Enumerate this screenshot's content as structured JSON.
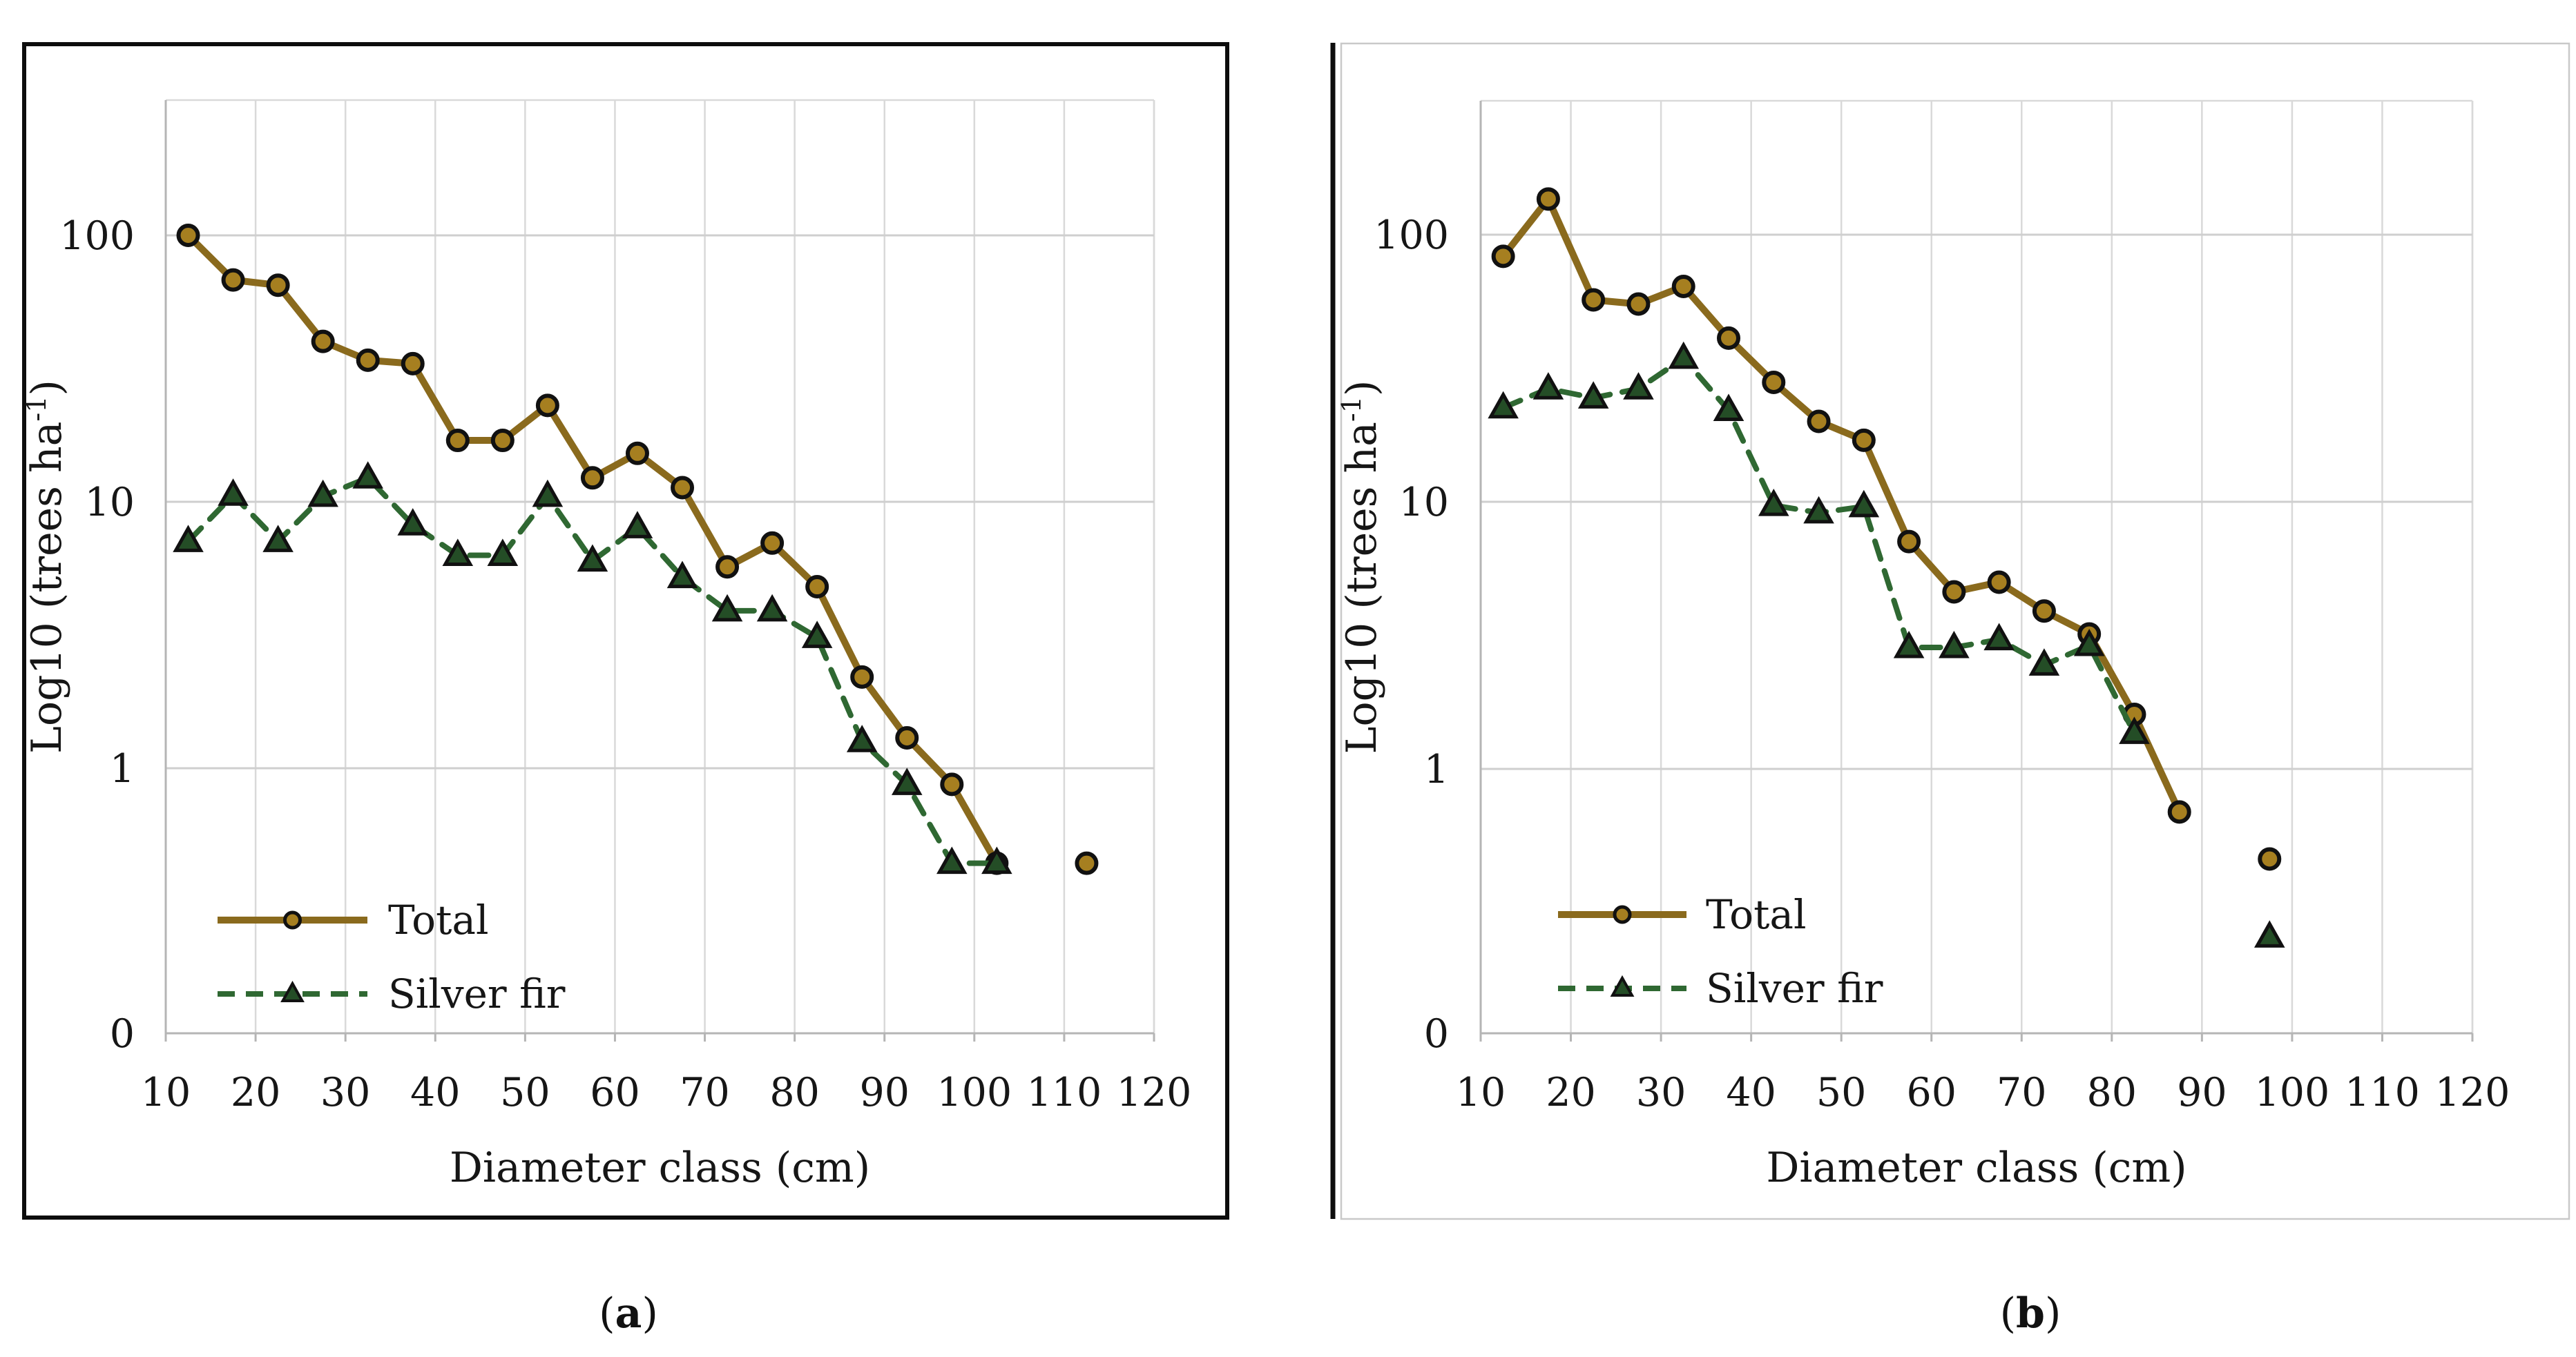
{
  "page": {
    "background": "#ffffff"
  },
  "captions": {
    "a_open": "(",
    "a_letter": "a",
    "a_close": ")",
    "b_open": "(",
    "b_letter": "b",
    "b_close": ")"
  },
  "colors": {
    "total_line": "#8a6a1d",
    "total_marker_fill": "#a67f20",
    "fir_line": "#2f6832",
    "fir_marker_fill": "#244d26",
    "marker_stroke": "#111111",
    "gridline": "#d9d9d9",
    "axis_line": "#b5b5b5",
    "text": "#161616",
    "panel_a_border": "#0d0d0d",
    "panel_b_border": "#c9c9c9"
  },
  "chart_data": [
    {
      "id": "a",
      "type": "line",
      "title": "",
      "xlabel": "Diameter class (cm)",
      "ylabel_prefix": "Log10 (trees ha",
      "ylabel_sup": "-1",
      "ylabel_suffix": ")",
      "y_scale": "log10",
      "xlim": [
        10,
        120
      ],
      "ylim": [
        0.1,
        320
      ],
      "x_ticks": [
        10,
        20,
        30,
        40,
        50,
        60,
        70,
        80,
        90,
        100,
        110,
        120
      ],
      "y_ticks": [
        {
          "v": 100,
          "label": "100"
        },
        {
          "v": 10,
          "label": "10"
        },
        {
          "v": 1,
          "label": "1"
        },
        {
          "v": 0.1,
          "label": "0"
        }
      ],
      "y_gridlines": [
        100,
        10,
        1
      ],
      "grid": true,
      "legend_position": "inside-bottom-left",
      "series": [
        {
          "name": "Total",
          "marker": "circle",
          "dash": "solid",
          "segments": [
            {
              "x": [
                12.5,
                17.5,
                22.5,
                27.5,
                32.5,
                37.5,
                42.5,
                47.5,
                52.5,
                57.5,
                62.5,
                67.5,
                72.5,
                77.5,
                82.5,
                87.5,
                92.5,
                97.5,
                102.5
              ],
              "y": [
                100,
                68,
                65,
                40,
                34,
                33,
                17,
                17,
                23,
                12.3,
                15.2,
                11.3,
                5.7,
                7,
                4.8,
                2.2,
                1.3,
                0.87,
                0.44
              ]
            },
            {
              "x": [
                112.5
              ],
              "y": [
                0.44
              ]
            }
          ]
        },
        {
          "name": "Silver fir",
          "marker": "triangle",
          "dash": "dashed",
          "segments": [
            {
              "x": [
                12.5,
                17.5,
                22.5,
                27.5,
                32.5,
                37.5,
                42.5,
                47.5,
                52.5,
                57.5,
                62.5,
                67.5,
                72.5,
                77.5,
                82.5,
                87.5,
                92.5,
                97.5,
                102.5
              ],
              "y": [
                7.1,
                10.6,
                7.1,
                10.5,
                12.3,
                8.2,
                6.3,
                6.3,
                10.5,
                6,
                8,
                5.2,
                3.9,
                3.9,
                3.1,
                1.26,
                0.87,
                0.44,
                0.44
              ]
            }
          ]
        }
      ]
    },
    {
      "id": "b",
      "type": "line",
      "title": "",
      "xlabel": "Diameter class (cm)",
      "ylabel_prefix": "Log10 (trees ha",
      "ylabel_sup": "-1",
      "ylabel_suffix": ")",
      "y_scale": "log10",
      "xlim": [
        10,
        120
      ],
      "ylim": [
        0.1,
        320
      ],
      "x_ticks": [
        10,
        20,
        30,
        40,
        50,
        60,
        70,
        80,
        90,
        100,
        110,
        120
      ],
      "y_ticks": [
        {
          "v": 100,
          "label": "100"
        },
        {
          "v": 10,
          "label": "10"
        },
        {
          "v": 1,
          "label": "1"
        },
        {
          "v": 0.1,
          "label": "0"
        }
      ],
      "y_gridlines": [
        100,
        10,
        1
      ],
      "grid": true,
      "legend_position": "inside-bottom-left",
      "series": [
        {
          "name": "Total",
          "marker": "circle",
          "dash": "solid",
          "segments": [
            {
              "x": [
                12.5,
                17.5,
                22.5,
                27.5,
                32.5,
                37.5,
                42.5,
                47.5,
                52.5,
                57.5,
                62.5,
                67.5,
                72.5,
                77.5,
                82.5,
                87.5
              ],
              "y": [
                83,
                136,
                57,
                55,
                64,
                41,
                28,
                20,
                17,
                7.1,
                4.6,
                5.0,
                3.9,
                3.2,
                1.6,
                0.69
              ]
            },
            {
              "x": [
                97.5
              ],
              "y": [
                0.46
              ]
            }
          ]
        },
        {
          "name": "Silver fir",
          "marker": "triangle",
          "dash": "dashed",
          "segments": [
            {
              "x": [
                12.5,
                17.5,
                22.5,
                27.5,
                32.5,
                37.5,
                42.5,
                47.5,
                52.5,
                57.5,
                62.5,
                67.5,
                72.5,
                77.5,
                82.5
              ],
              "y": [
                22.5,
                26.5,
                24.5,
                26.5,
                34.5,
                22,
                9.7,
                9.1,
                9.6,
                2.85,
                2.85,
                3.05,
                2.45,
                2.9,
                1.36
              ]
            },
            {
              "x": [
                97.5
              ],
              "y": [
                0.235
              ]
            }
          ]
        }
      ]
    }
  ]
}
